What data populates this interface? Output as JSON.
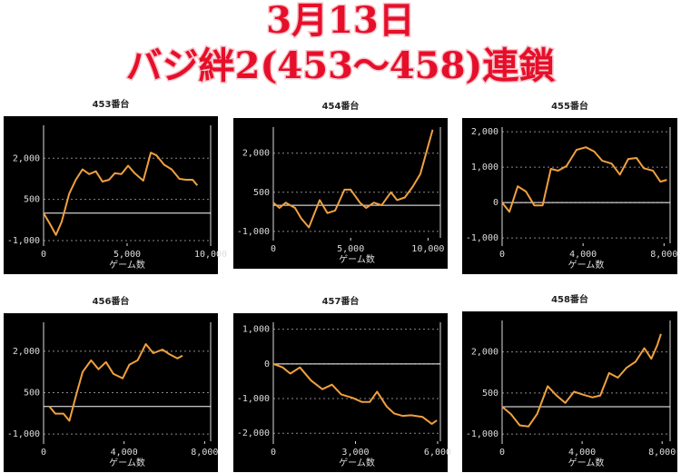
{
  "header": {
    "line1": "3月13日",
    "line2": "バジ絆2(453〜458)連鎖"
  },
  "chart_data": [
    {
      "type": "line",
      "title": "453番台",
      "x_label": "ゲーム数",
      "color": "#f0a040",
      "grid": true,
      "x": [
        0,
        400,
        740,
        1080,
        1530,
        1930,
        2330,
        2730,
        3130,
        3520,
        3920,
        4260,
        4660,
        5060,
        5450,
        5970,
        6420,
        6760,
        7220,
        7670,
        8130,
        8520,
        8920,
        9200
      ],
      "values": [
        0,
        -420,
        -795,
        -318,
        705,
        1216,
        1591,
        1420,
        1523,
        1148,
        1216,
        1455,
        1420,
        1727,
        1455,
        1182,
        2205,
        2102,
        1761,
        1591,
        1250,
        1216,
        1216,
        1011
      ],
      "xlim": [
        0,
        10000
      ],
      "ylim": [
        -1100,
        3200
      ],
      "xticks": [
        0,
        {
          "value": 5000,
          "label": "5,000"
        },
        {
          "value": 10000,
          "label": "10,000"
        }
      ],
      "yticks": [
        {
          "value": -1000,
          "label": "-1,000"
        },
        500,
        {
          "value": 2000,
          "label": "2,000"
        }
      ]
    },
    {
      "type": "line",
      "title": "454番台",
      "x_label": "ゲーム数",
      "color": "#f0a040",
      "grid": true,
      "x": [
        0,
        400,
        800,
        1400,
        1800,
        2300,
        3000,
        3500,
        4000,
        4600,
        5000,
        5600,
        6000,
        6500,
        7000,
        7600,
        8000,
        8500,
        9000,
        9500,
        10300
      ],
      "values": [
        100,
        -100,
        100,
        -100,
        -500,
        -850,
        200,
        -300,
        -200,
        600,
        600,
        100,
        -100,
        100,
        0,
        500,
        200,
        300,
        700,
        1200,
        2900
      ],
      "xlim": [
        0,
        10800
      ],
      "ylim": [
        -1250,
        3000
      ],
      "xticks": [
        0,
        {
          "value": 5000,
          "label": "5,000"
        },
        {
          "value": 10000,
          "label": "10,000"
        }
      ],
      "yticks": [
        {
          "value": -1000,
          "label": "-1,000"
        },
        500,
        {
          "value": 2000,
          "label": "2,000"
        }
      ]
    },
    {
      "type": "line",
      "title": "455番台",
      "x_label": "ゲーム数",
      "color": "#f0a040",
      "grid": true,
      "x": [
        0,
        360,
        770,
        1180,
        1590,
        2000,
        2410,
        2770,
        3180,
        3680,
        4140,
        4550,
        4950,
        5410,
        5820,
        6230,
        6640,
        7000,
        7450,
        7820,
        8140
      ],
      "values": [
        0,
        -260,
        460,
        310,
        -80,
        -80,
        950,
        900,
        1030,
        1490,
        1560,
        1440,
        1180,
        1100,
        790,
        1230,
        1260,
        970,
        900,
        590,
        640
      ],
      "xlim": [
        0,
        8300
      ],
      "ylim": [
        -1150,
        2130
      ],
      "xticks": [
        0,
        {
          "value": 4000,
          "label": "4,000"
        },
        {
          "value": 8000,
          "label": "8,000"
        }
      ],
      "yticks": [
        {
          "value": -1000,
          "label": "-1,000"
        },
        0,
        {
          "value": 1000,
          "label": "1,000"
        },
        {
          "value": 2000,
          "label": "2,000"
        }
      ]
    },
    {
      "type": "line",
      "title": "456番台",
      "x_label": "ゲーム数",
      "color": "#f0a040",
      "grid": true,
      "x": [
        290,
        580,
        990,
        1280,
        1610,
        1940,
        2360,
        2730,
        3100,
        3470,
        3930,
        4260,
        4670,
        5080,
        5450,
        5910,
        6240,
        6650,
        6900
      ],
      "values": [
        0,
        -260,
        -260,
        -520,
        390,
        1250,
        1670,
        1350,
        1610,
        1180,
        1020,
        1510,
        1670,
        2260,
        1930,
        2060,
        1900,
        1740,
        1840
      ],
      "xlim": [
        0,
        8300
      ],
      "ylim": [
        -1260,
        3050
      ],
      "xticks": [
        0,
        {
          "value": 4000,
          "label": "4,000"
        },
        {
          "value": 8000,
          "label": "8,000"
        }
      ],
      "yticks": [
        {
          "value": -1000,
          "label": "-1,000"
        },
        500,
        {
          "value": 2000,
          "label": "2,000"
        }
      ]
    },
    {
      "type": "line",
      "title": "457番台",
      "x_label": "ゲーム数",
      "color": "#f0a040",
      "grid": true,
      "x": [
        0,
        340,
        620,
        970,
        1380,
        1790,
        2140,
        2480,
        2900,
        3240,
        3520,
        3790,
        4140,
        4410,
        4720,
        5030,
        5450,
        5790,
        5970
      ],
      "values": [
        0,
        -100,
        -280,
        -100,
        -480,
        -730,
        -600,
        -880,
        -980,
        -1100,
        -1100,
        -800,
        -1230,
        -1430,
        -1500,
        -1480,
        -1530,
        -1730,
        -1630
      ],
      "xlim": [
        0,
        6100
      ],
      "ylim": [
        -2230,
        1200
      ],
      "xticks": [
        0,
        {
          "value": 3000,
          "label": "3,000"
        },
        {
          "value": 6000,
          "label": "6,000"
        }
      ],
      "yticks": [
        {
          "value": -2000,
          "label": "-2,000"
        },
        {
          "value": -1000,
          "label": "-1,000"
        },
        0,
        {
          "value": 1000,
          "label": "1,000"
        }
      ]
    },
    {
      "type": "line",
      "title": "458番台",
      "x_label": "ゲーム数",
      "color": "#f0a040",
      "grid": true,
      "x": [
        0,
        440,
        880,
        1320,
        1750,
        2280,
        2720,
        3160,
        3600,
        4040,
        4520,
        4910,
        5350,
        5790,
        6230,
        6670,
        7110,
        7460,
        7760,
        7940
      ],
      "values": [
        0,
        -270,
        -680,
        -720,
        -270,
        750,
        410,
        140,
        550,
        440,
        340,
        410,
        1230,
        1060,
        1430,
        1640,
        2140,
        1750,
        2250,
        2660
      ],
      "xlim": [
        0,
        8400
      ],
      "ylim": [
        -1260,
        3150
      ],
      "xticks": [
        0,
        {
          "value": 4000,
          "label": "4,000"
        },
        {
          "value": 8000,
          "label": "8,000"
        }
      ],
      "yticks": [
        {
          "value": -1000,
          "label": "-1,000"
        },
        500,
        {
          "value": 2000,
          "label": "2,000"
        }
      ]
    }
  ]
}
